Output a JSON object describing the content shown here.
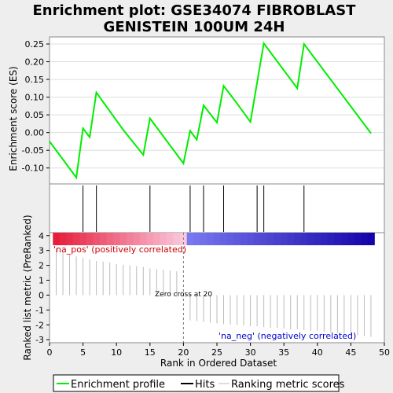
{
  "chart_data": {
    "type": "line",
    "title": "Enrichment plot: GSE34074 FIBROBLAST GENISTEIN 100UM 24H",
    "es_panel": {
      "ylabel": "Enrichment score (ES)",
      "ylim": [
        -0.145,
        0.27
      ],
      "yticks": [
        0.25,
        0.2,
        0.15,
        0.1,
        0.05,
        0.0,
        -0.05,
        -0.1
      ],
      "ytick_labels": [
        "0.25",
        "0.20",
        "0.15",
        "0.10",
        "0.05",
        "0.00",
        "-0.05",
        "-0.10"
      ],
      "series": [
        {
          "name": "Enrichment profile",
          "color": "#00ee00",
          "x": [
            0,
            4,
            5,
            6,
            7,
            11,
            14,
            15,
            20,
            21,
            22,
            23,
            25,
            26,
            28,
            30,
            32,
            37,
            38,
            48
          ],
          "y": [
            -0.025,
            -0.127,
            0.012,
            -0.013,
            0.113,
            0.008,
            -0.063,
            0.04,
            -0.087,
            0.005,
            -0.02,
            0.077,
            0.028,
            0.132,
            0.082,
            0.03,
            0.252,
            0.125,
            0.25,
            -0.002
          ]
        }
      ]
    },
    "hits_panel": {
      "hits": [
        5,
        7,
        15,
        21,
        23,
        26,
        31,
        32,
        38
      ]
    },
    "rank_panel": {
      "xlabel": "Rank in Ordered Dataset",
      "ylabel": "Ranked list metric (PreRanked)",
      "xlim": [
        0,
        50
      ],
      "xticks": [
        0,
        5,
        10,
        15,
        20,
        25,
        30,
        35,
        40,
        45,
        50
      ],
      "ylim": [
        -3.2,
        4.2
      ],
      "yticks": [
        4,
        3,
        2,
        1,
        0,
        -1,
        -2,
        -3
      ],
      "ranks": [
        1,
        2,
        3,
        4,
        5,
        6,
        7,
        8,
        9,
        10,
        11,
        12,
        13,
        14,
        15,
        16,
        17,
        18,
        19,
        20,
        21,
        22,
        23,
        24,
        25,
        26,
        27,
        28,
        29,
        30,
        31,
        32,
        33,
        34,
        35,
        36,
        37,
        38,
        39,
        40,
        41,
        42,
        43,
        44,
        45,
        46,
        47,
        48
      ],
      "metric": [
        3.1,
        2.9,
        2.7,
        2.6,
        2.5,
        2.4,
        2.3,
        2.25,
        2.2,
        2.1,
        2.05,
        2.0,
        1.95,
        1.9,
        1.8,
        1.75,
        1.7,
        1.65,
        1.6,
        0.1,
        -1.7,
        -1.75,
        -1.8,
        -1.85,
        -1.9,
        -1.95,
        -2.0,
        -2.0,
        -2.05,
        -2.1,
        -2.1,
        -2.15,
        -2.2,
        -2.2,
        -2.25,
        -2.3,
        -2.3,
        -2.35,
        -2.4,
        -2.4,
        -2.45,
        -2.5,
        -2.55,
        -2.6,
        -2.65,
        -2.7,
        -2.75,
        -2.8
      ],
      "zero_cross_rank": 20,
      "zero_cross_label": "Zero cross at 20",
      "pos_label": "'na_pos' (positively correlated)",
      "neg_label": "'na_neg' (negatively correlated)",
      "pos_color": "#cc0000",
      "neg_color": "#0000cc"
    },
    "legend": {
      "position": "bottom",
      "items": [
        {
          "label": "Enrichment profile",
          "color": "#00ee00"
        },
        {
          "label": "Hits",
          "color": "#000000"
        },
        {
          "label": "Ranking metric scores",
          "color": "#bbbbbb"
        }
      ]
    }
  }
}
